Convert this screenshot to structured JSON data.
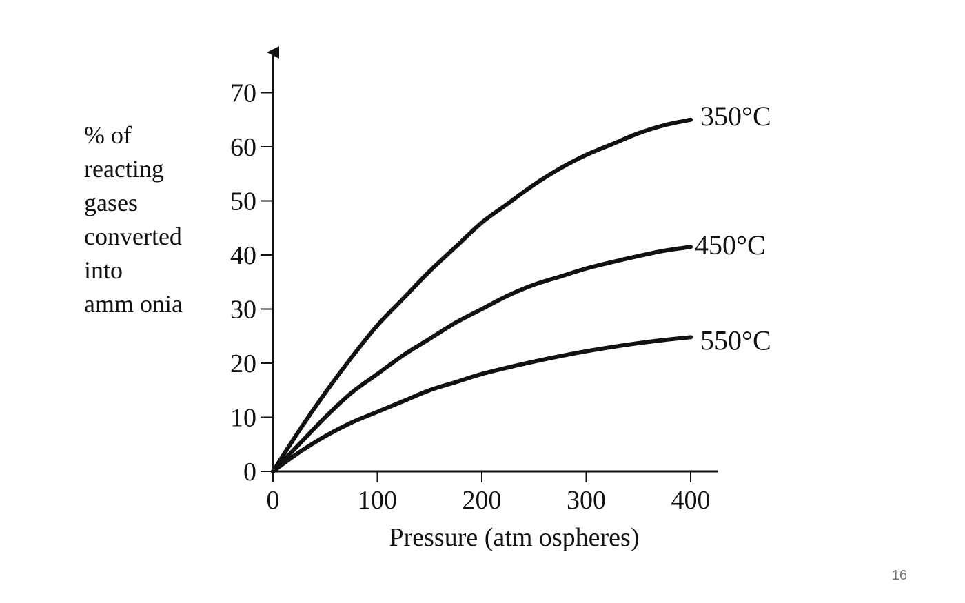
{
  "slide": {
    "page_number": "16"
  },
  "chart_data": {
    "type": "line",
    "title": "",
    "xlabel": "Pressure (atm ospheres)",
    "ylabel_lines": [
      "% of",
      "reacting",
      "gases",
      "converted",
      "into",
      "amm onia"
    ],
    "xlim": [
      0,
      400
    ],
    "ylim": [
      0,
      70
    ],
    "xticks": [
      0,
      100,
      200,
      300,
      400
    ],
    "yticks": [
      0,
      10,
      20,
      30,
      40,
      50,
      60,
      70
    ],
    "grid": false,
    "legend": "inline labels at line ends",
    "series": [
      {
        "name": "350°C",
        "x": [
          0,
          25,
          50,
          75,
          100,
          125,
          150,
          175,
          200,
          225,
          250,
          275,
          300,
          325,
          350,
          375,
          400
        ],
        "values": [
          0,
          7.5,
          14.5,
          21,
          27,
          32,
          37,
          41.5,
          46,
          49.5,
          53,
          56,
          58.5,
          60.5,
          62.5,
          64,
          65
        ]
      },
      {
        "name": "450°C",
        "x": [
          0,
          25,
          50,
          75,
          100,
          125,
          150,
          175,
          200,
          225,
          250,
          275,
          300,
          325,
          350,
          375,
          400
        ],
        "values": [
          0,
          5,
          10,
          14.5,
          18,
          21.5,
          24.5,
          27.5,
          30,
          32.5,
          34.5,
          36,
          37.5,
          38.7,
          39.8,
          40.8,
          41.5
        ]
      },
      {
        "name": "550°C",
        "x": [
          0,
          25,
          50,
          75,
          100,
          125,
          150,
          175,
          200,
          225,
          250,
          275,
          300,
          325,
          350,
          375,
          400
        ],
        "values": [
          0,
          3.5,
          6.5,
          9,
          11,
          13,
          15,
          16.5,
          18,
          19.2,
          20.3,
          21.3,
          22.2,
          23,
          23.7,
          24.3,
          24.8
        ]
      }
    ],
    "colors": {
      "line": "#111111",
      "axis": "#111111",
      "text": "#111111"
    }
  }
}
